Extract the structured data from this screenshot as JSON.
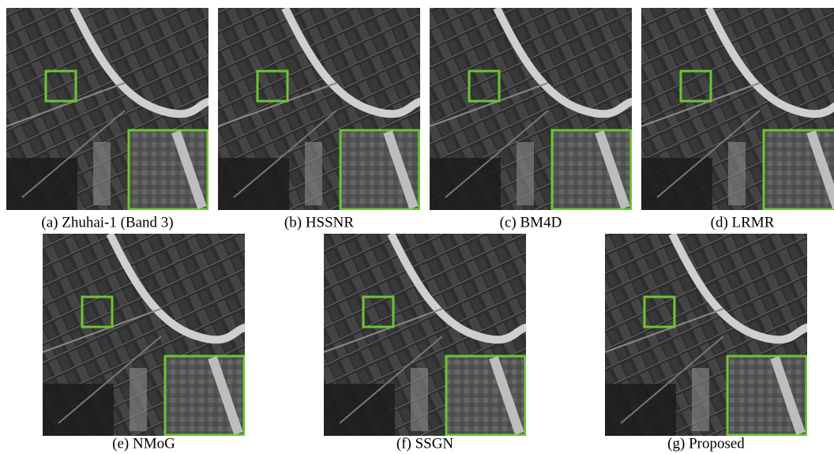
{
  "figure": {
    "captions": [
      "(a) Zhuhai-1 (Band 3)",
      "(b) HSSNR",
      "(c) BM4D",
      "(d) LRMR",
      "(e) NMoG",
      "(f) SSGN",
      "(g) Proposed"
    ]
  }
}
